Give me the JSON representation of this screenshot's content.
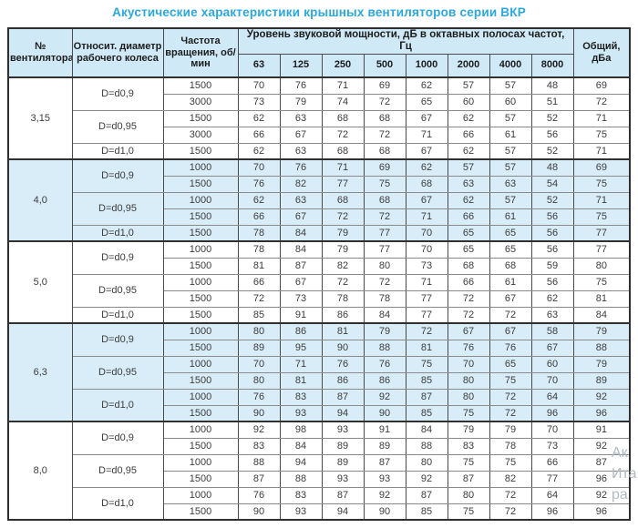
{
  "title": "Акустические характеристики крышных вентиляторов серии ВКР",
  "colors": {
    "title_accent": "#29a8e0",
    "header_bg": "#cfe9f7",
    "shaded_row_bg": "#d9edf8",
    "border_dark": "#2e2e2e",
    "watermark": "#b2bac0"
  },
  "header": {
    "fan_no": "№ вентилятора",
    "rel_diameter": "Относит. диаметр рабочего колеса",
    "speed": "Частота вращения, об/мин",
    "group": "Уровень звуковой мощности, дБ в октавных полосах частот, Гц",
    "freqs": [
      "63",
      "125",
      "250",
      "500",
      "1000",
      "2000",
      "4000",
      "8000"
    ],
    "total": "Общий, дБа"
  },
  "sections": [
    {
      "fan": "3,15",
      "shaded": false,
      "groups": [
        {
          "d": "D=d0,9",
          "rows": [
            {
              "rpm": "1500",
              "levels": [
                70,
                76,
                71,
                69,
                62,
                57,
                57,
                48
              ],
              "total": 69
            },
            {
              "rpm": "3000",
              "levels": [
                73,
                79,
                74,
                72,
                65,
                60,
                60,
                51
              ],
              "total": 72
            }
          ]
        },
        {
          "d": "D=d0,95",
          "rows": [
            {
              "rpm": "1500",
              "levels": [
                62,
                63,
                68,
                68,
                67,
                62,
                57,
                52
              ],
              "total": 71
            },
            {
              "rpm": "3000",
              "levels": [
                66,
                67,
                72,
                72,
                71,
                66,
                61,
                56
              ],
              "total": 75
            }
          ]
        },
        {
          "d": "D=d1,0",
          "rows": [
            {
              "rpm": "1500",
              "levels": [
                62,
                63,
                68,
                68,
                67,
                62,
                57,
                52
              ],
              "total": 71
            }
          ]
        }
      ]
    },
    {
      "fan": "4,0",
      "shaded": true,
      "groups": [
        {
          "d": "D=d0,9",
          "rows": [
            {
              "rpm": "1000",
              "levels": [
                70,
                76,
                71,
                69,
                62,
                57,
                57,
                48
              ],
              "total": 69
            },
            {
              "rpm": "1500",
              "levels": [
                76,
                82,
                77,
                75,
                68,
                63,
                63,
                54
              ],
              "total": 75
            }
          ]
        },
        {
          "d": "D=d0,95",
          "rows": [
            {
              "rpm": "1000",
              "levels": [
                62,
                63,
                68,
                68,
                67,
                62,
                57,
                52
              ],
              "total": 71
            },
            {
              "rpm": "1500",
              "levels": [
                66,
                67,
                72,
                72,
                71,
                66,
                61,
                56
              ],
              "total": 75
            }
          ]
        },
        {
          "d": "D=d1,0",
          "rows": [
            {
              "rpm": "1500",
              "levels": [
                78,
                84,
                79,
                77,
                70,
                65,
                65,
                56
              ],
              "total": 77
            }
          ]
        }
      ]
    },
    {
      "fan": "5,0",
      "shaded": false,
      "groups": [
        {
          "d": "D=d0,9",
          "rows": [
            {
              "rpm": "1000",
              "levels": [
                78,
                84,
                79,
                77,
                70,
                65,
                65,
                56
              ],
              "total": 77
            },
            {
              "rpm": "1500",
              "levels": [
                81,
                87,
                82,
                80,
                73,
                68,
                68,
                59
              ],
              "total": 80
            }
          ]
        },
        {
          "d": "D=d0,95",
          "rows": [
            {
              "rpm": "1000",
              "levels": [
                66,
                67,
                72,
                72,
                71,
                66,
                61,
                56
              ],
              "total": 75
            },
            {
              "rpm": "1500",
              "levels": [
                72,
                73,
                78,
                78,
                77,
                72,
                67,
                62
              ],
              "total": 81
            }
          ]
        },
        {
          "d": "D=d1,0",
          "rows": [
            {
              "rpm": "1500",
              "levels": [
                85,
                91,
                86,
                84,
                77,
                72,
                72,
                63
              ],
              "total": 84
            }
          ]
        }
      ]
    },
    {
      "fan": "6,3",
      "shaded": true,
      "groups": [
        {
          "d": "D=d0,9",
          "rows": [
            {
              "rpm": "1000",
              "levels": [
                80,
                86,
                81,
                79,
                72,
                67,
                67,
                58
              ],
              "total": 79
            },
            {
              "rpm": "1500",
              "levels": [
                89,
                95,
                90,
                88,
                81,
                76,
                76,
                67
              ],
              "total": 88
            }
          ]
        },
        {
          "d": "D=d0,95",
          "rows": [
            {
              "rpm": "1000",
              "levels": [
                70,
                71,
                76,
                76,
                75,
                70,
                65,
                60
              ],
              "total": 79
            },
            {
              "rpm": "1500",
              "levels": [
                80,
                81,
                86,
                86,
                85,
                80,
                75,
                70
              ],
              "total": 89
            }
          ]
        },
        {
          "d": "D=d1,0",
          "rows": [
            {
              "rpm": "1000",
              "levels": [
                76,
                83,
                87,
                92,
                87,
                80,
                72,
                64
              ],
              "total": 92
            },
            {
              "rpm": "1500",
              "levels": [
                90,
                93,
                94,
                90,
                85,
                75,
                72,
                96
              ],
              "total": 96
            }
          ]
        }
      ]
    },
    {
      "fan": "8,0",
      "shaded": false,
      "groups": [
        {
          "d": "D=d0,9",
          "rows": [
            {
              "rpm": "1000",
              "levels": [
                92,
                98,
                93,
                91,
                84,
                79,
                79,
                70
              ],
              "total": 91
            },
            {
              "rpm": "1500",
              "levels": [
                83,
                84,
                89,
                89,
                88,
                83,
                78,
                73
              ],
              "total": 92
            }
          ]
        },
        {
          "d": "D=d0,95",
          "rows": [
            {
              "rpm": "1000",
              "levels": [
                88,
                94,
                89,
                87,
                80,
                75,
                75,
                66
              ],
              "total": 87
            },
            {
              "rpm": "1500",
              "levels": [
                87,
                88,
                93,
                93,
                92,
                87,
                82,
                77
              ],
              "total": 96
            }
          ]
        },
        {
          "d": "D=d1,0",
          "rows": [
            {
              "rpm": "1000",
              "levels": [
                76,
                83,
                87,
                92,
                87,
                80,
                72,
                64
              ],
              "total": 92
            },
            {
              "rpm": "1500",
              "levels": [
                90,
                93,
                94,
                90,
                85,
                75,
                72,
                96
              ],
              "total": 96
            }
          ]
        }
      ]
    }
  ],
  "watermark": {
    "lines": [
      "Ак",
      "Ита",
      "ра"
    ]
  }
}
